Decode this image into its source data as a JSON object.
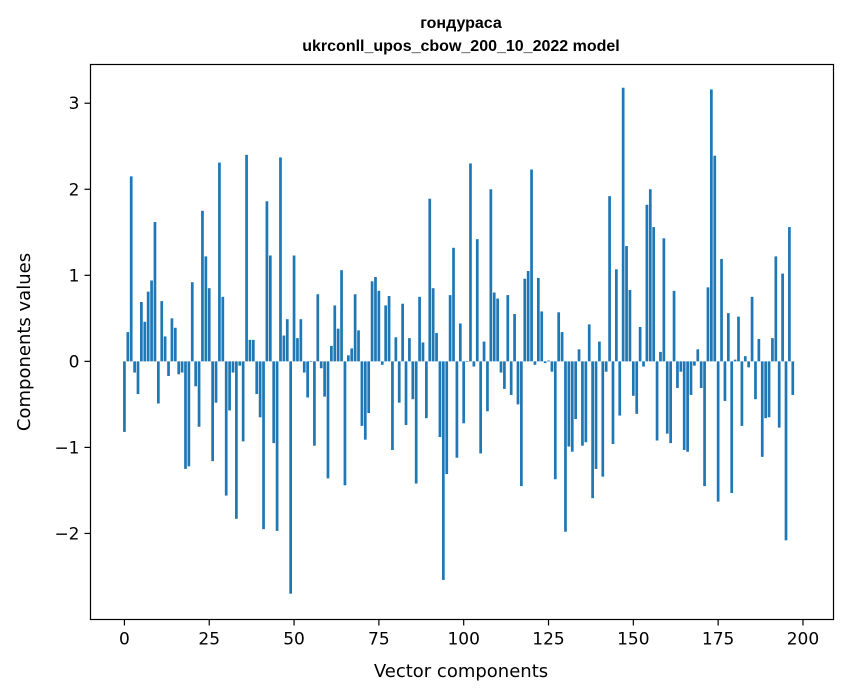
{
  "chart_data": {
    "type": "bar",
    "title_line1": "гондураса",
    "title_line2": "ukrconll_upos_cbow_200_10_2022 model",
    "xlabel": "Vector components",
    "ylabel": "Components values",
    "xlim": [
      -10,
      209
    ],
    "ylim": [
      -3.0,
      3.45
    ],
    "xticks": [
      0,
      25,
      50,
      75,
      100,
      125,
      150,
      175,
      200
    ],
    "yticks": [
      -2,
      -1,
      0,
      1,
      2,
      3
    ],
    "ytick_labels": [
      "−2",
      "−1",
      "0",
      "1",
      "2",
      "3"
    ],
    "bar_color": "#1f77b4",
    "values": [
      -0.82,
      0.34,
      2.15,
      -0.13,
      -0.38,
      0.69,
      0.46,
      0.81,
      0.94,
      1.62,
      -0.49,
      0.7,
      0.29,
      -0.17,
      0.5,
      0.39,
      -0.15,
      -0.13,
      -1.25,
      -1.22,
      0.92,
      -0.29,
      -0.76,
      1.75,
      1.22,
      0.85,
      -1.16,
      -0.48,
      2.31,
      0.75,
      -1.56,
      -0.57,
      -0.13,
      -1.83,
      -0.05,
      -0.93,
      2.4,
      0.25,
      0.25,
      -0.38,
      -0.65,
      -1.95,
      1.86,
      1.23,
      -0.95,
      -1.97,
      2.37,
      0.3,
      0.49,
      -2.7,
      1.23,
      0.27,
      0.49,
      -0.13,
      -0.42,
      0.0,
      -0.98,
      0.78,
      -0.08,
      -0.41,
      -1.36,
      0.18,
      0.65,
      0.38,
      1.06,
      -1.44,
      0.07,
      0.15,
      0.78,
      0.36,
      -0.75,
      -0.91,
      -0.6,
      0.93,
      0.98,
      0.82,
      -0.04,
      0.65,
      0.76,
      -1.03,
      0.28,
      -0.48,
      0.67,
      -0.74,
      0.27,
      -0.44,
      -1.42,
      0.75,
      0.22,
      -0.66,
      1.89,
      0.85,
      0.33,
      -0.88,
      -2.54,
      -1.31,
      0.77,
      1.32,
      -1.12,
      0.44,
      -0.72,
      0.0,
      2.3,
      -0.06,
      1.42,
      -1.07,
      0.23,
      -0.58,
      2.0,
      0.8,
      0.73,
      -0.13,
      -0.32,
      0.77,
      -0.39,
      0.55,
      -0.5,
      -1.45,
      0.96,
      1.05,
      2.23,
      -0.04,
      0.97,
      0.58,
      -0.02,
      0.01,
      -0.12,
      -1.37,
      0.57,
      0.34,
      -1.98,
      -0.99,
      -1.05,
      -0.67,
      0.14,
      -0.98,
      -0.94,
      0.43,
      -1.59,
      -1.25,
      0.23,
      -1.34,
      -0.12,
      1.92,
      -0.96,
      1.07,
      -0.63,
      3.18,
      1.34,
      0.83,
      -0.4,
      -0.61,
      0.4,
      -0.06,
      1.82,
      2.0,
      1.56,
      -0.92,
      0.11,
      1.43,
      -0.84,
      -0.95,
      0.82,
      -0.31,
      -0.12,
      -1.03,
      -1.05,
      -0.39,
      -0.05,
      0.14,
      -0.31,
      -1.45,
      0.86,
      3.16,
      2.39,
      -1.63,
      1.19,
      -0.46,
      0.56,
      -1.53,
      0.02,
      0.52,
      -0.75,
      0.06,
      -0.07,
      0.75,
      -0.44,
      0.26,
      -1.11,
      -0.66,
      -0.65,
      0.27,
      1.22,
      -0.77,
      1.02,
      -2.08,
      1.56,
      -0.39
    ]
  }
}
